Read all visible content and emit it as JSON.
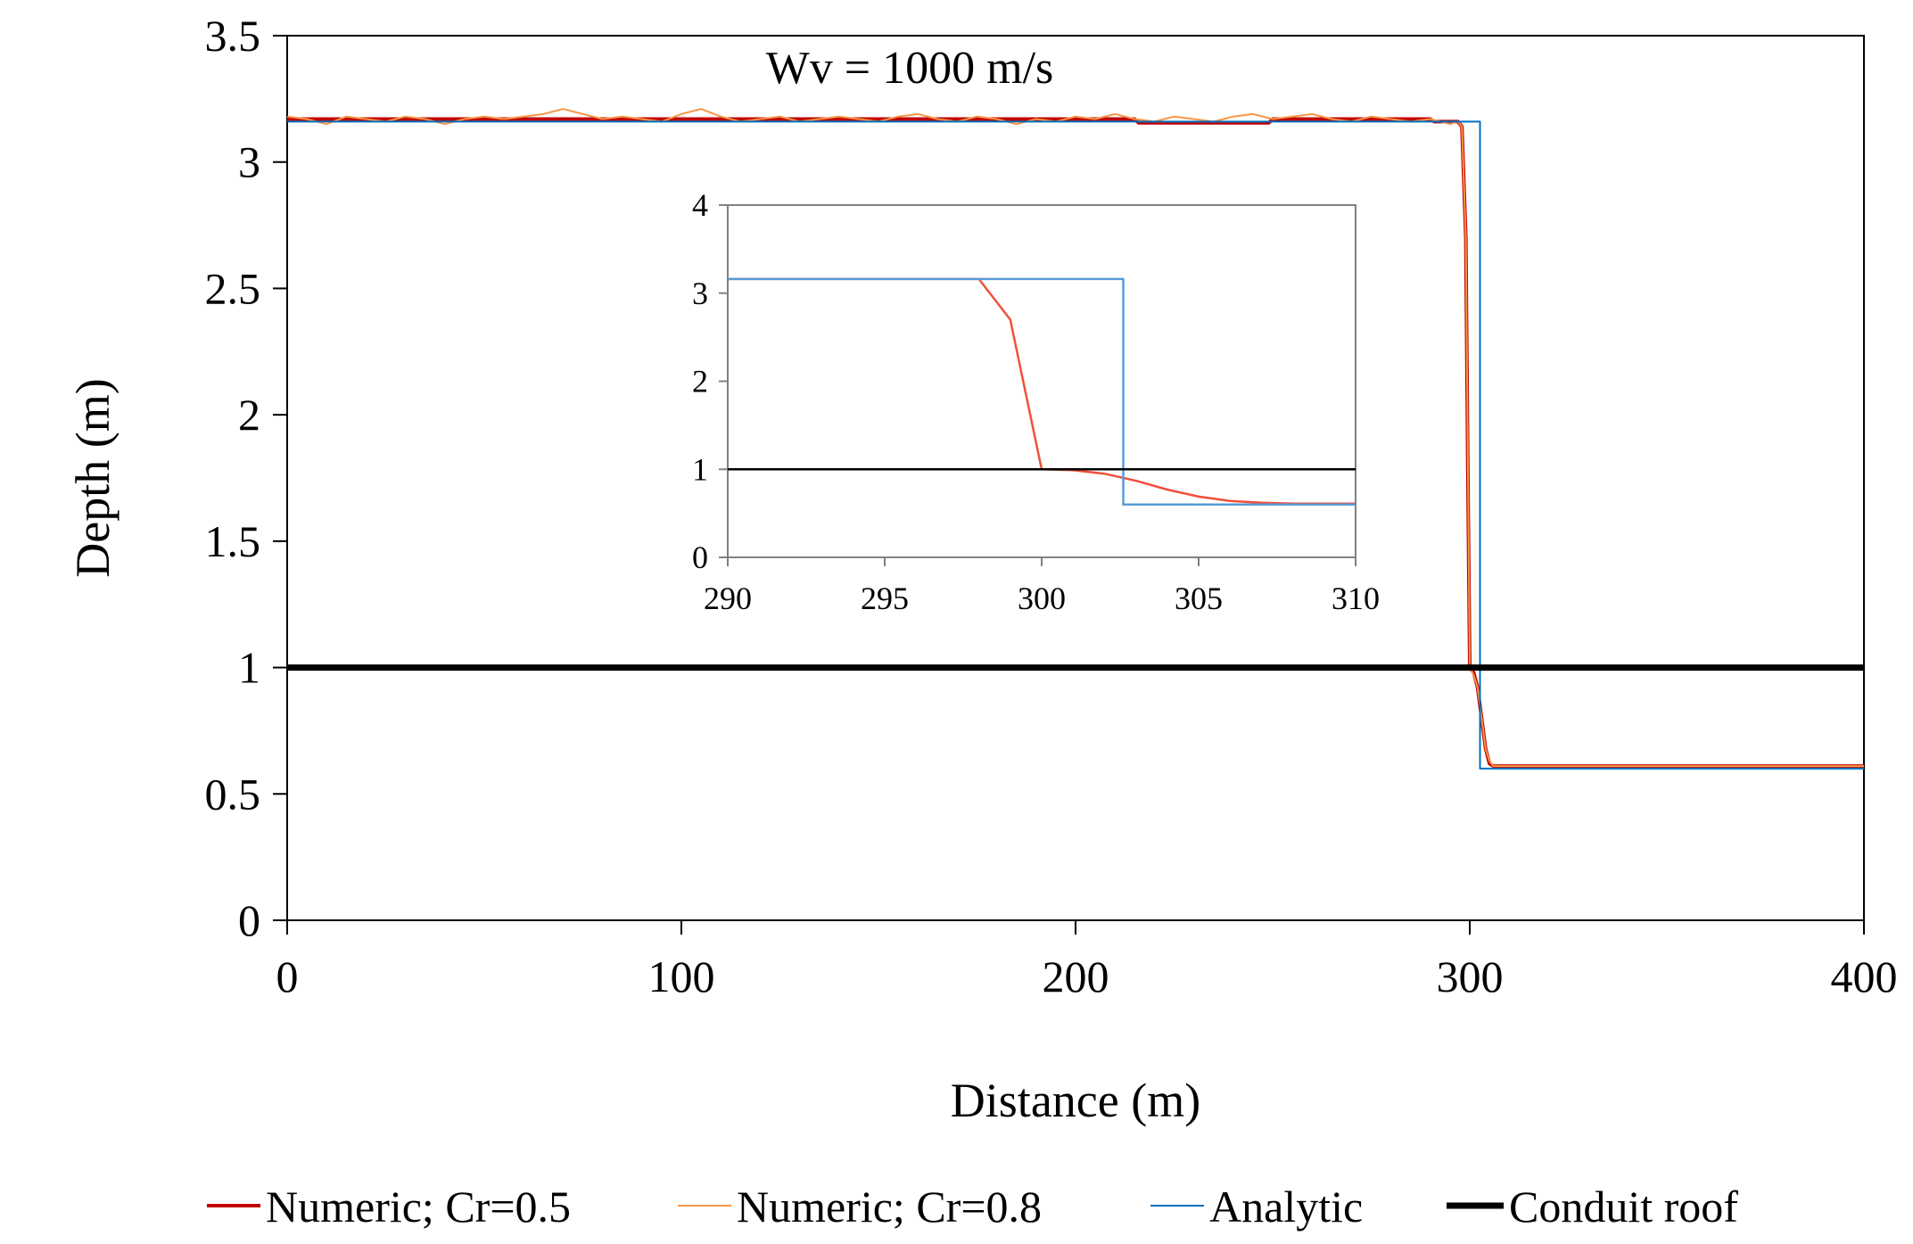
{
  "chart_data": [
    {
      "type": "line",
      "role": "main",
      "title": "",
      "annotation": "Wv = 1000 m/s",
      "xlabel": "Distance (m)",
      "ylabel": "Depth (m)",
      "xlim": [
        0,
        400
      ],
      "ylim": [
        0,
        3.5
      ],
      "xticks": [
        0,
        100,
        200,
        300,
        400
      ],
      "yticks": [
        0,
        0.5,
        1,
        1.5,
        2,
        2.5,
        3,
        3.5
      ],
      "xtick_labels": [
        "0",
        "100",
        "200",
        "300",
        "400"
      ],
      "ytick_labels": [
        "0",
        "0.5",
        "1",
        "1.5",
        "2",
        "2.5",
        "3",
        "3.5"
      ],
      "legend_position": "bottom",
      "series": [
        {
          "name": "Numeric; Cr=0.5",
          "color": "#c00000",
          "x": [
            0,
            60,
            120,
            180,
            215,
            216,
            249,
            250,
            290,
            291,
            297,
            298,
            299,
            299.5,
            300,
            301,
            302,
            303,
            304,
            305,
            306,
            310,
            400
          ],
          "y": [
            3.17,
            3.17,
            3.17,
            3.17,
            3.17,
            3.155,
            3.155,
            3.17,
            3.17,
            3.16,
            3.16,
            3.14,
            2.7,
            1.8,
            1.0,
            0.98,
            0.92,
            0.8,
            0.68,
            0.62,
            0.61,
            0.61,
            0.61
          ]
        },
        {
          "name": "Numeric; Cr=0.8",
          "color": "#f79646",
          "x": [
            0,
            5,
            10,
            15,
            20,
            25,
            30,
            35,
            40,
            45,
            50,
            55,
            60,
            65,
            70,
            75,
            80,
            85,
            90,
            95,
            100,
            105,
            110,
            115,
            120,
            125,
            130,
            135,
            140,
            145,
            150,
            155,
            160,
            165,
            170,
            175,
            180,
            185,
            190,
            195,
            200,
            205,
            210,
            215,
            220,
            225,
            230,
            235,
            240,
            245,
            250,
            255,
            260,
            265,
            270,
            275,
            280,
            285,
            290,
            295,
            297,
            298,
            299,
            300,
            301,
            302,
            303,
            304,
            305,
            306,
            310,
            400
          ],
          "y": [
            3.18,
            3.17,
            3.15,
            3.18,
            3.17,
            3.16,
            3.18,
            3.17,
            3.15,
            3.17,
            3.18,
            3.17,
            3.18,
            3.19,
            3.21,
            3.19,
            3.17,
            3.18,
            3.17,
            3.16,
            3.19,
            3.21,
            3.18,
            3.16,
            3.17,
            3.18,
            3.16,
            3.17,
            3.18,
            3.17,
            3.16,
            3.18,
            3.19,
            3.17,
            3.16,
            3.18,
            3.17,
            3.15,
            3.17,
            3.16,
            3.18,
            3.17,
            3.19,
            3.17,
            3.16,
            3.18,
            3.17,
            3.16,
            3.18,
            3.19,
            3.17,
            3.18,
            3.19,
            3.17,
            3.16,
            3.18,
            3.17,
            3.16,
            3.17,
            3.15,
            3.16,
            3.14,
            2.7,
            1.0,
            0.97,
            0.92,
            0.8,
            0.68,
            0.63,
            0.61,
            0.61,
            0.61
          ]
        },
        {
          "name": "Analytic",
          "color": "#0070c0",
          "x": [
            0,
            302.6,
            302.6,
            400
          ],
          "y": [
            3.16,
            3.16,
            0.6,
            0.6
          ]
        },
        {
          "name": "Conduit roof",
          "color": "#000000",
          "x": [
            0,
            400
          ],
          "y": [
            1,
            1
          ]
        }
      ]
    },
    {
      "type": "line",
      "role": "inset",
      "title": "",
      "xlabel": "",
      "ylabel": "",
      "xlim": [
        290,
        310
      ],
      "ylim": [
        0,
        4
      ],
      "xticks": [
        290,
        295,
        300,
        305,
        310
      ],
      "yticks": [
        0,
        1,
        2,
        3,
        4
      ],
      "xtick_labels": [
        "290",
        "295",
        "300",
        "305",
        "310"
      ],
      "ytick_labels": [
        "0",
        "1",
        "2",
        "3",
        "4"
      ],
      "series": [
        {
          "name": "Numeric",
          "color": "#f0503c",
          "x": [
            290,
            292,
            294,
            296,
            298,
            299,
            300,
            301,
            302,
            303,
            304,
            305,
            306,
            307,
            308,
            310
          ],
          "y": [
            3.16,
            3.16,
            3.16,
            3.16,
            3.16,
            2.7,
            1.0,
            0.99,
            0.95,
            0.87,
            0.77,
            0.69,
            0.64,
            0.62,
            0.61,
            0.61
          ]
        },
        {
          "name": "Analytic",
          "color": "#5b9bd5",
          "x": [
            290,
            302.6,
            302.6,
            310
          ],
          "y": [
            3.16,
            3.16,
            0.6,
            0.6
          ]
        },
        {
          "name": "Conduit roof",
          "color": "#000000",
          "x": [
            290,
            310
          ],
          "y": [
            1,
            1
          ]
        }
      ]
    }
  ]
}
